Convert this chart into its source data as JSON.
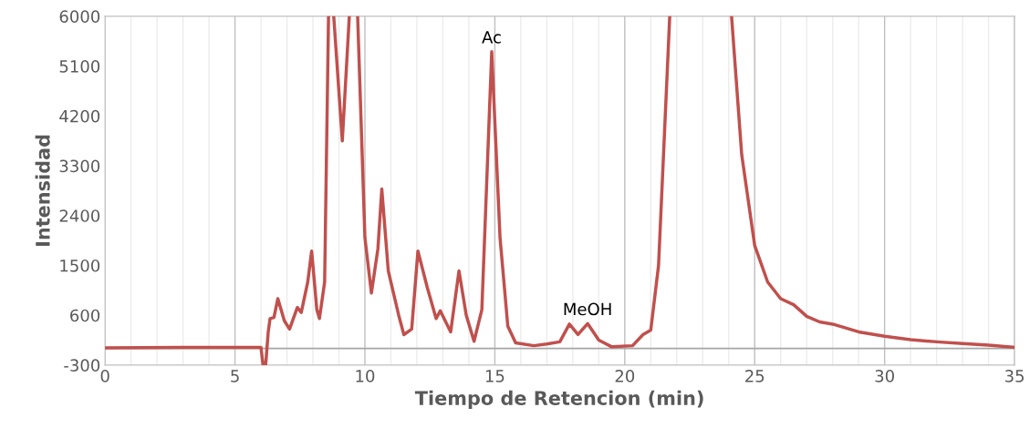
{
  "chart_data": {
    "type": "line",
    "xlabel": "Tiempo de Retencion (min)",
    "ylabel": "Intensidad",
    "xlim": [
      0,
      35
    ],
    "ylim": [
      -300,
      6000
    ],
    "xticks": [
      0,
      {
        "value": 1,
        "label": null
      },
      {
        "value": 2,
        "label": null
      },
      {
        "value": 3,
        "label": null
      },
      {
        "value": 4,
        "label": null
      },
      5,
      {
        "value": 6,
        "label": null
      },
      {
        "value": 7,
        "label": null
      },
      {
        "value": 8,
        "label": null
      },
      {
        "value": 9,
        "label": null
      },
      10,
      {
        "value": 11,
        "label": null
      },
      {
        "value": 12,
        "label": null
      },
      {
        "value": 13,
        "label": null
      },
      {
        "value": 14,
        "label": null
      },
      15,
      {
        "value": 16,
        "label": null
      },
      {
        "value": 17,
        "label": null
      },
      {
        "value": 18,
        "label": null
      },
      {
        "value": 19,
        "label": null
      },
      20,
      {
        "value": 21,
        "label": null
      },
      {
        "value": 22,
        "label": null
      },
      {
        "value": 23,
        "label": null
      },
      {
        "value": 24,
        "label": null
      },
      25,
      {
        "value": 26,
        "label": null
      },
      {
        "value": 27,
        "label": null
      },
      {
        "value": 28,
        "label": null
      },
      {
        "value": 29,
        "label": null
      },
      30,
      {
        "value": 31,
        "label": null
      },
      {
        "value": 32,
        "label": null
      },
      {
        "value": 33,
        "label": null
      },
      {
        "value": 34,
        "label": null
      },
      35
    ],
    "yticks": [
      -300,
      600,
      1500,
      2400,
      3300,
      4200,
      5100,
      6000
    ],
    "grid": "x",
    "marker": "none",
    "line_style": "solid",
    "ref_lines": [
      {
        "axis": "y",
        "value": 0,
        "label": null,
        "color": "#a6a6a6"
      }
    ],
    "x": [
      0,
      3,
      5.5,
      6.0,
      6.08,
      6.18,
      6.28,
      6.35,
      6.5,
      6.65,
      6.9,
      7.1,
      7.4,
      7.55,
      7.8,
      7.95,
      8.15,
      8.25,
      8.45,
      8.6,
      8.7,
      8.8,
      9.13,
      9.4,
      9.56,
      9.72,
      10.0,
      10.25,
      10.5,
      10.65,
      10.9,
      11.3,
      11.5,
      11.8,
      12.04,
      12.4,
      12.74,
      12.9,
      13.3,
      13.62,
      13.9,
      14.2,
      14.5,
      14.88,
      15.2,
      15.5,
      15.8,
      16.5,
      17.0,
      17.5,
      17.87,
      18.2,
      18.57,
      19.0,
      19.5,
      20.3,
      20.7,
      21.0,
      21.3,
      21.73,
      22.9,
      24.11,
      24.5,
      25.0,
      25.5,
      26.0,
      26.5,
      27.0,
      27.5,
      28.0,
      29.0,
      30.0,
      31.0,
      32.0,
      33.0,
      34.0,
      35.0
    ],
    "series": [
      {
        "color": "#c0504d",
        "values": [
          10,
          20,
          20,
          20,
          -300,
          -300,
          300,
          540,
          560,
          900,
          500,
          350,
          740,
          650,
          1200,
          1760,
          700,
          540,
          1200,
          6000,
          null,
          6000,
          3750,
          6000,
          null,
          6000,
          2000,
          1000,
          1800,
          2880,
          1400,
          600,
          250,
          350,
          1760,
          1100,
          540,
          680,
          300,
          1400,
          600,
          130,
          700,
          5360,
          2000,
          400,
          100,
          50,
          80,
          120,
          440,
          250,
          450,
          150,
          30,
          50,
          250,
          330,
          1500,
          6000,
          null,
          6000,
          3500,
          1860,
          1200,
          900,
          790,
          580,
          480,
          440,
          300,
          220,
          160,
          120,
          90,
          60,
          20
        ]
      }
    ],
    "annotations": [
      {
        "text": "Ac",
        "x": 14.88,
        "y": 5360
      },
      {
        "text": "MeOH",
        "x": 18.57,
        "y": 450
      }
    ]
  }
}
